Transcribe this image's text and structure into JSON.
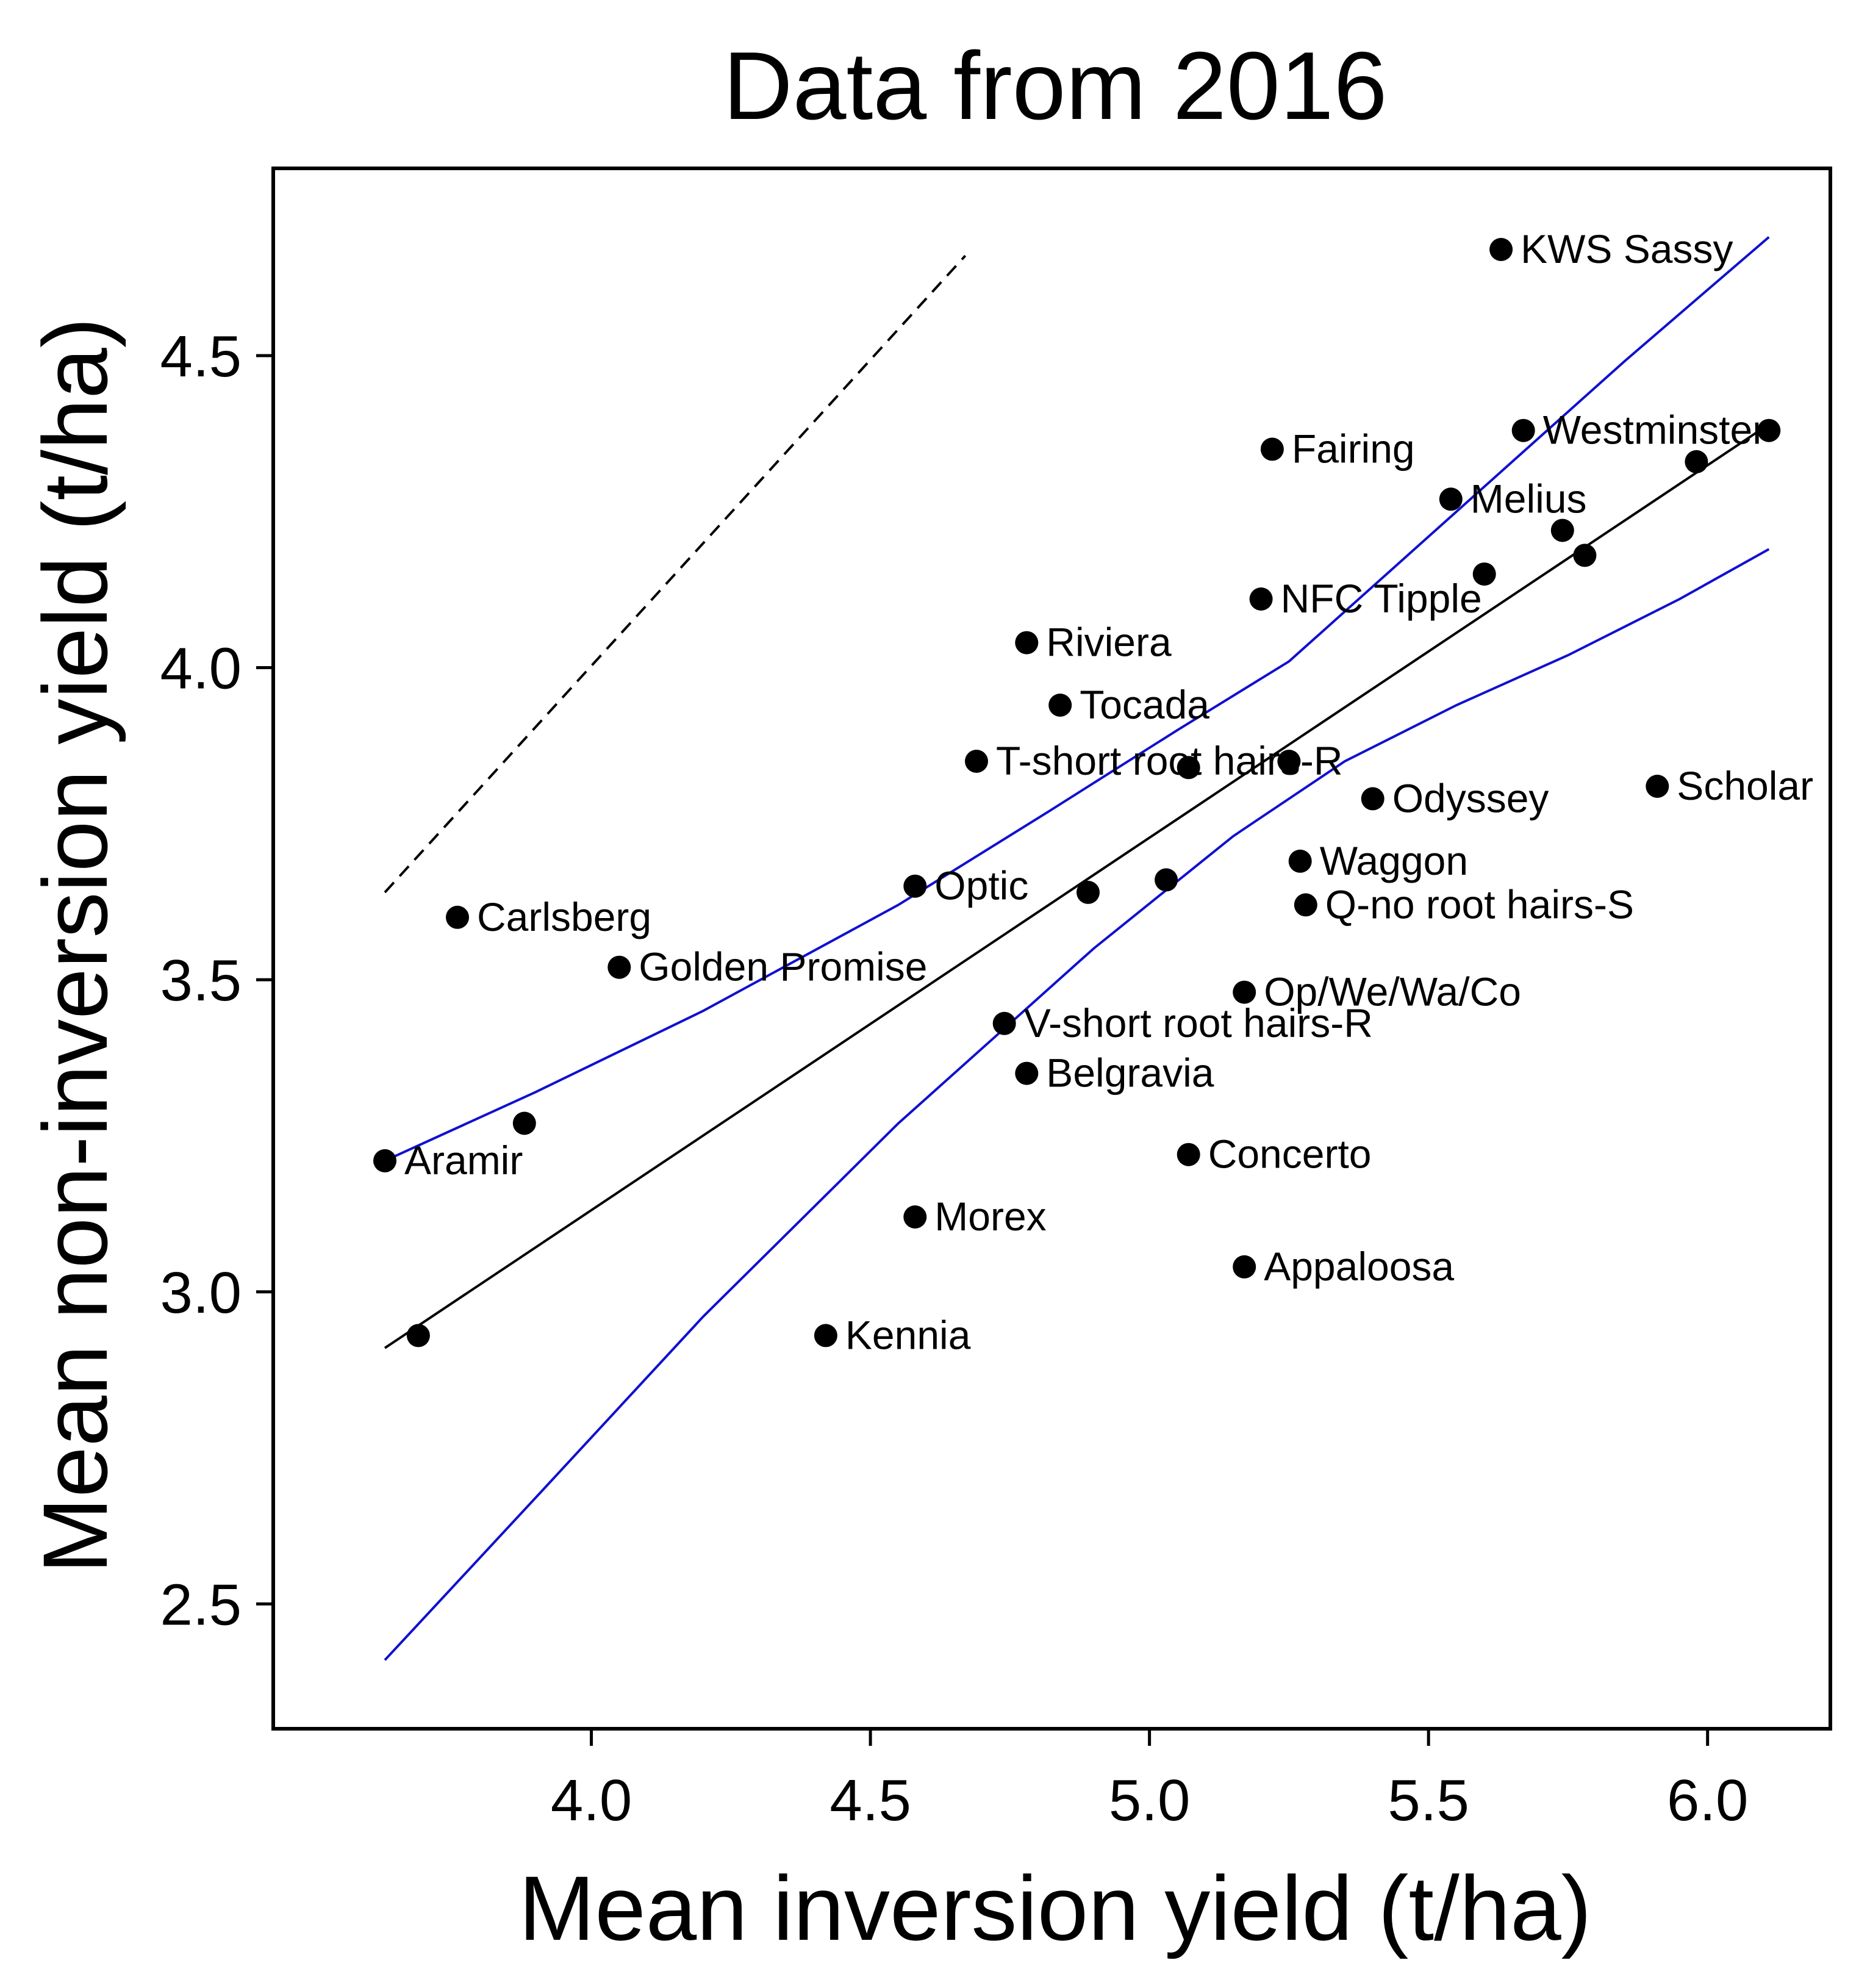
{
  "chart_data": {
    "type": "scatter",
    "title": "Data from 2016",
    "xlabel": "Mean inversion yield (t/ha)",
    "ylabel": "Mean non-inversion yield (t/ha)",
    "xlim": [
      3.43,
      6.22
    ],
    "ylim": [
      2.3,
      4.8
    ],
    "xticks": [
      4.0,
      4.5,
      5.0,
      5.5,
      6.0
    ],
    "xtick_labels": [
      "4.0",
      "4.5",
      "5.0",
      "5.5",
      "6.0"
    ],
    "yticks": [
      2.5,
      3.0,
      3.5,
      4.0,
      4.5
    ],
    "ytick_labels": [
      "2.5",
      "3.0",
      "3.5",
      "4.0",
      "4.5"
    ],
    "grid": false,
    "colors": {
      "points": "#000000",
      "fit_line": "#000000",
      "confidence_band": "#1010d0",
      "reference_line": "#000000"
    },
    "points": [
      {
        "x": 5.63,
        "y": 4.67,
        "label": "KWS Sassy"
      },
      {
        "x": 5.67,
        "y": 4.38,
        "label": "Westminster"
      },
      {
        "x": 6.11,
        "y": 4.38,
        "label": ""
      },
      {
        "x": 5.98,
        "y": 4.33,
        "label": ""
      },
      {
        "x": 5.22,
        "y": 4.35,
        "label": "Fairing"
      },
      {
        "x": 5.54,
        "y": 4.27,
        "label": "Melius"
      },
      {
        "x": 5.74,
        "y": 4.22,
        "label": ""
      },
      {
        "x": 5.78,
        "y": 4.18,
        "label": ""
      },
      {
        "x": 5.6,
        "y": 4.15,
        "label": ""
      },
      {
        "x": 5.2,
        "y": 4.11,
        "label": "NFC Tipple"
      },
      {
        "x": 4.78,
        "y": 4.04,
        "label": "Riviera"
      },
      {
        "x": 4.84,
        "y": 3.94,
        "label": "Tocada"
      },
      {
        "x": 4.69,
        "y": 3.85,
        "label": "T-short root hairs-R"
      },
      {
        "x": 5.07,
        "y": 3.84,
        "label": ""
      },
      {
        "x": 5.25,
        "y": 3.85,
        "label": ""
      },
      {
        "x": 5.91,
        "y": 3.81,
        "label": "Scholar"
      },
      {
        "x": 5.4,
        "y": 3.79,
        "label": "Odyssey"
      },
      {
        "x": 5.27,
        "y": 3.69,
        "label": "Waggon"
      },
      {
        "x": 4.58,
        "y": 3.65,
        "label": "Optic"
      },
      {
        "x": 5.03,
        "y": 3.66,
        "label": ""
      },
      {
        "x": 4.89,
        "y": 3.64,
        "label": ""
      },
      {
        "x": 5.28,
        "y": 3.62,
        "label": "Q-no root hairs-S"
      },
      {
        "x": 3.76,
        "y": 3.6,
        "label": "Carlsberg"
      },
      {
        "x": 4.05,
        "y": 3.52,
        "label": "Golden Promise"
      },
      {
        "x": 5.17,
        "y": 3.48,
        "label": "Op/We/Wa/Co"
      },
      {
        "x": 4.74,
        "y": 3.43,
        "label": "V-short root hairs-R"
      },
      {
        "x": 4.78,
        "y": 3.35,
        "label": "Belgravia"
      },
      {
        "x": 3.88,
        "y": 3.27,
        "label": ""
      },
      {
        "x": 3.63,
        "y": 3.21,
        "label": "Aramir"
      },
      {
        "x": 5.07,
        "y": 3.22,
        "label": "Concerto"
      },
      {
        "x": 4.58,
        "y": 3.12,
        "label": "Morex"
      },
      {
        "x": 5.17,
        "y": 3.04,
        "label": "Appaloosa"
      },
      {
        "x": 4.42,
        "y": 2.93,
        "label": "Kennia"
      },
      {
        "x": 3.69,
        "y": 2.93,
        "label": ""
      }
    ],
    "fit_line": {
      "x": [
        3.63,
        6.11
      ],
      "y": [
        2.91,
        4.39
      ]
    },
    "confidence_upper": {
      "x": [
        3.63,
        3.9,
        4.2,
        4.55,
        4.82,
        5.05,
        5.25,
        5.45,
        5.65,
        5.85,
        6.11
      ],
      "y": [
        3.21,
        3.32,
        3.45,
        3.62,
        3.77,
        3.9,
        4.01,
        4.17,
        4.33,
        4.49,
        4.69
      ]
    },
    "confidence_lower": {
      "x": [
        3.63,
        3.9,
        4.2,
        4.55,
        4.9,
        5.15,
        5.35,
        5.55,
        5.75,
        5.95,
        6.11
      ],
      "y": [
        2.41,
        2.67,
        2.96,
        3.27,
        3.55,
        3.73,
        3.85,
        3.94,
        4.02,
        4.11,
        4.19
      ]
    },
    "reference_line": {
      "x": [
        3.63,
        4.67
      ],
      "y": [
        3.64,
        4.66
      ],
      "style": "dashed"
    }
  }
}
